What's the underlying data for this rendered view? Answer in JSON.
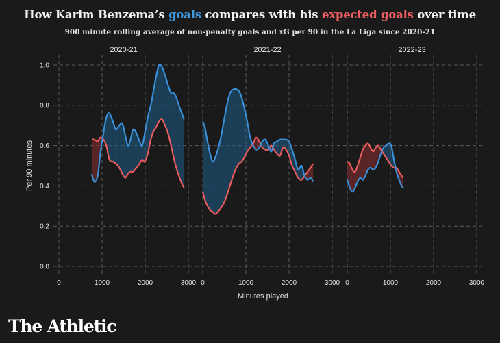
{
  "title": {
    "part1": "How Karim Benzema’s ",
    "goals": "goals",
    "part2": " compares with his ",
    "xg": "expected goals",
    "part3": " over time"
  },
  "subtitle": "900 minute rolling average of non-penalty goals and xG per 90 in the La Liga since 2020-21",
  "brand": "The Athletic",
  "colors": {
    "goals": "#3a8fd6",
    "xg": "#e85b5e",
    "background": "#1a1a1a",
    "grid": "#5a5a5a"
  },
  "chart_data": {
    "type": "line",
    "xlabel": "Minutes played",
    "ylabel": "Per 90 minutes",
    "ylim": [
      0,
      1.0
    ],
    "yticks": [
      0.0,
      0.2,
      0.4,
      0.6,
      0.8,
      1.0
    ],
    "ytick_labels": [
      "0.0",
      "0.2",
      "0.4",
      "0.6",
      "0.8",
      "1.0"
    ],
    "xlim": [
      0,
      3000
    ],
    "xticks": [
      0,
      1000,
      2000,
      3000
    ],
    "xtick_labels": [
      "0",
      "1000",
      "2000",
      "3000"
    ],
    "grid": true,
    "panels": [
      {
        "season": "2020-21",
        "x": [
          760,
          820,
          900,
          960,
          1030,
          1100,
          1170,
          1250,
          1320,
          1400,
          1470,
          1540,
          1600,
          1660,
          1720,
          1800,
          1870,
          1930,
          1990,
          2060,
          2130,
          2190,
          2250,
          2320,
          2390,
          2460,
          2530,
          2600,
          2660,
          2720,
          2780,
          2850,
          2900
        ],
        "goals": [
          0.46,
          0.42,
          0.45,
          0.56,
          0.66,
          0.74,
          0.76,
          0.72,
          0.68,
          0.7,
          0.71,
          0.65,
          0.6,
          0.63,
          0.68,
          0.66,
          0.62,
          0.6,
          0.66,
          0.74,
          0.8,
          0.87,
          0.94,
          1.0,
          0.99,
          0.95,
          0.9,
          0.86,
          0.86,
          0.84,
          0.8,
          0.76,
          0.73
        ],
        "xg": [
          0.63,
          0.63,
          0.62,
          0.64,
          0.63,
          0.6,
          0.53,
          0.52,
          0.51,
          0.49,
          0.46,
          0.44,
          0.46,
          0.47,
          0.47,
          0.49,
          0.51,
          0.53,
          0.52,
          0.56,
          0.63,
          0.67,
          0.69,
          0.72,
          0.73,
          0.7,
          0.66,
          0.6,
          0.54,
          0.49,
          0.45,
          0.41,
          0.39
        ]
      },
      {
        "season": "2021-22",
        "x": [
          0,
          50,
          110,
          170,
          230,
          290,
          350,
          420,
          480,
          540,
          600,
          660,
          720,
          780,
          840,
          900,
          960,
          1030,
          1100,
          1170,
          1240,
          1310,
          1380,
          1450,
          1520,
          1590,
          1650,
          1720,
          1790,
          1860,
          1930,
          2000,
          2070,
          2140,
          2210,
          2290,
          2360,
          2430,
          2500,
          2560
        ],
        "goals": [
          0.72,
          0.69,
          0.62,
          0.56,
          0.52,
          0.54,
          0.58,
          0.64,
          0.71,
          0.78,
          0.84,
          0.87,
          0.88,
          0.88,
          0.87,
          0.84,
          0.79,
          0.72,
          0.64,
          0.6,
          0.58,
          0.59,
          0.62,
          0.63,
          0.6,
          0.57,
          0.61,
          0.62,
          0.63,
          0.63,
          0.63,
          0.62,
          0.58,
          0.53,
          0.48,
          0.5,
          0.45,
          0.43,
          0.44,
          0.42
        ],
        "xg": [
          0.37,
          0.33,
          0.3,
          0.28,
          0.27,
          0.26,
          0.27,
          0.29,
          0.31,
          0.34,
          0.38,
          0.42,
          0.46,
          0.49,
          0.51,
          0.52,
          0.54,
          0.57,
          0.59,
          0.61,
          0.64,
          0.62,
          0.59,
          0.58,
          0.58,
          0.6,
          0.58,
          0.56,
          0.55,
          0.59,
          0.58,
          0.55,
          0.5,
          0.47,
          0.44,
          0.43,
          0.45,
          0.47,
          0.49,
          0.51
        ]
      },
      {
        "season": "2022-23",
        "x": [
          0,
          60,
          120,
          180,
          240,
          300,
          360,
          420,
          480,
          540,
          600,
          660,
          720,
          780,
          840,
          900,
          960,
          1020,
          1080,
          1140,
          1200,
          1260,
          1300
        ],
        "goals": [
          0.43,
          0.39,
          0.37,
          0.39,
          0.42,
          0.44,
          0.43,
          0.45,
          0.48,
          0.49,
          0.48,
          0.49,
          0.52,
          0.56,
          0.59,
          0.6,
          0.61,
          0.6,
          0.53,
          0.47,
          0.43,
          0.4,
          0.39
        ],
        "xg": [
          0.52,
          0.51,
          0.48,
          0.47,
          0.5,
          0.54,
          0.58,
          0.6,
          0.61,
          0.59,
          0.57,
          0.59,
          0.6,
          0.58,
          0.56,
          0.54,
          0.52,
          0.5,
          0.49,
          0.49,
          0.47,
          0.45,
          0.44
        ]
      }
    ]
  }
}
